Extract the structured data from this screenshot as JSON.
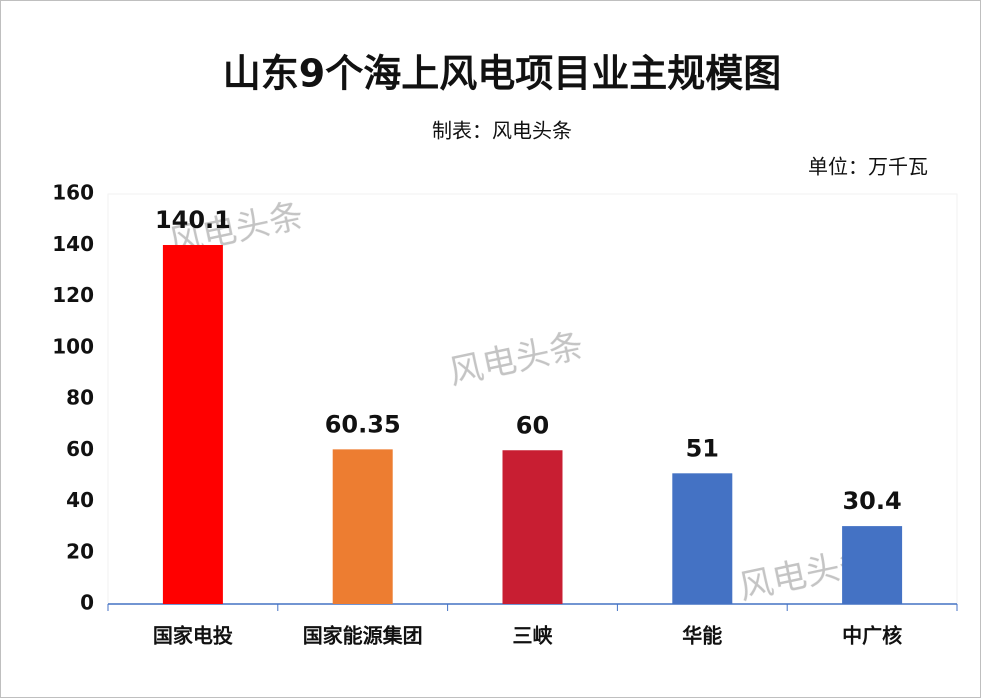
{
  "chart_data": {
    "type": "bar",
    "title": "山东9个海上风电项目业主规模图",
    "subtitle": "制表：风电头条",
    "unit_label": "单位：万千瓦",
    "watermark": "风电头条",
    "categories": [
      "国家电投",
      "国家能源集团",
      "三峡",
      "华能",
      "中广核"
    ],
    "values": [
      140.1,
      60.35,
      60,
      51,
      30.4
    ],
    "colors": [
      "#ff0000",
      "#ed7d31",
      "#c81e32",
      "#4472c4",
      "#4472c4"
    ],
    "ylim": [
      0,
      160
    ],
    "yticks": [
      0,
      20,
      40,
      60,
      80,
      100,
      120,
      140,
      160
    ],
    "grid": false
  }
}
